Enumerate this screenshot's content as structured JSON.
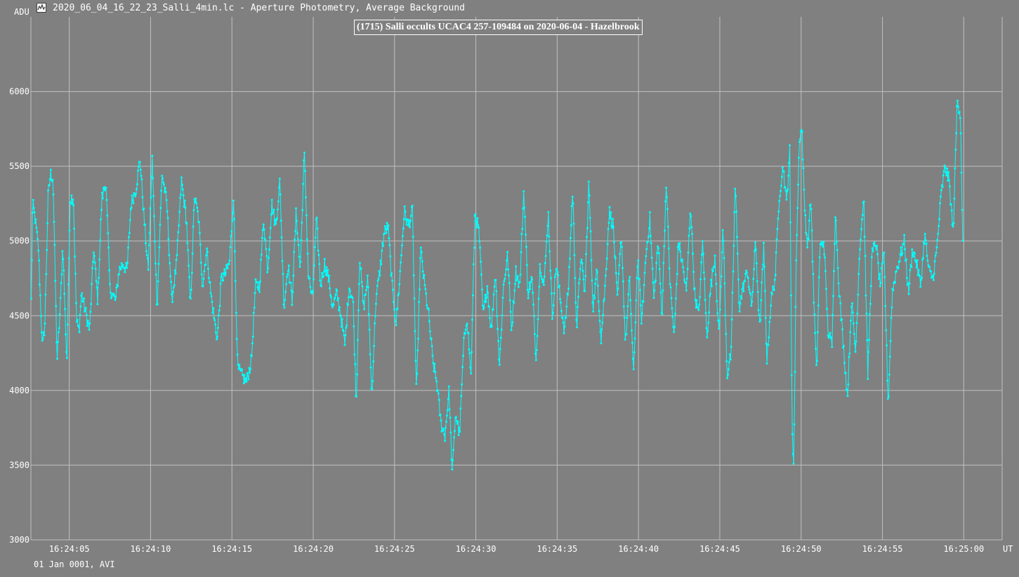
{
  "window": {
    "title": "2020_06_04_16_22_23_Salli_4min.lc - Aperture Photometry, Average Background",
    "icon": "light-curve-app-icon"
  },
  "footer": {
    "date_source": "01 Jan 0001, AVI"
  },
  "colors": {
    "background": "#808080",
    "grid": "#c0c0c0",
    "series": "#00ffff",
    "text": "#ffffff"
  },
  "chart_data": {
    "type": "line",
    "title": "(1715) Salli occults UCAC4 257-109484 on 2020-06-04 - Hazelbrook",
    "ylabel": "ADU",
    "xlabel": "UT",
    "ylim": [
      3000,
      6500
    ],
    "xlim": [
      2.64,
      62.36
    ],
    "y_ticks": [
      3000,
      3500,
      4000,
      4500,
      5000,
      5500,
      6000
    ],
    "x_ticks": [
      5,
      10,
      15,
      20,
      25,
      30,
      35,
      40,
      45,
      50,
      55,
      60
    ],
    "x_tick_labels": [
      "16:24:05",
      "16:24:10",
      "16:24:15",
      "16:24:20",
      "16:24:25",
      "16:24:30",
      "16:24:35",
      "16:24:40",
      "16:24:45",
      "16:24:50",
      "16:24:55",
      "16:25:00"
    ],
    "grid": true,
    "series": [
      {
        "color": "#00ffff",
        "x_start": 2.66,
        "x_step": 0.04,
        "anchors": [
          [
            2.66,
            4600
          ],
          [
            2.75,
            5250
          ],
          [
            2.9,
            5150
          ],
          [
            3.1,
            4950
          ],
          [
            3.35,
            4280
          ],
          [
            3.5,
            4450
          ],
          [
            3.7,
            5300
          ],
          [
            3.85,
            5450
          ],
          [
            4.0,
            5420
          ],
          [
            4.25,
            4200
          ],
          [
            4.45,
            4560
          ],
          [
            4.6,
            4980
          ],
          [
            4.85,
            4170
          ],
          [
            5.05,
            5280
          ],
          [
            5.25,
            5300
          ],
          [
            5.45,
            4460
          ],
          [
            5.6,
            4400
          ],
          [
            5.75,
            4650
          ],
          [
            5.95,
            4550
          ],
          [
            6.25,
            4400
          ],
          [
            6.5,
            4950
          ],
          [
            6.75,
            4600
          ],
          [
            7.0,
            5280
          ],
          [
            7.25,
            5400
          ],
          [
            7.5,
            4680
          ],
          [
            7.85,
            4600
          ],
          [
            8.05,
            4800
          ],
          [
            8.3,
            4850
          ],
          [
            8.55,
            4800
          ],
          [
            8.8,
            5250
          ],
          [
            9.1,
            5350
          ],
          [
            9.35,
            5550
          ],
          [
            9.6,
            5150
          ],
          [
            9.85,
            4800
          ],
          [
            10.1,
            5550
          ],
          [
            10.4,
            4550
          ],
          [
            10.7,
            5450
          ],
          [
            11.0,
            5250
          ],
          [
            11.3,
            4600
          ],
          [
            11.6,
            4850
          ],
          [
            11.9,
            5400
          ],
          [
            12.2,
            5150
          ],
          [
            12.45,
            4550
          ],
          [
            12.7,
            5300
          ],
          [
            12.95,
            5150
          ],
          [
            13.2,
            4700
          ],
          [
            13.45,
            4950
          ],
          [
            13.7,
            4650
          ],
          [
            13.95,
            4450
          ],
          [
            14.1,
            4350
          ],
          [
            14.35,
            4750
          ],
          [
            14.6,
            4780
          ],
          [
            14.85,
            4850
          ],
          [
            15.1,
            5300
          ],
          [
            15.35,
            4150
          ],
          [
            15.6,
            4100
          ],
          [
            15.9,
            4060
          ],
          [
            16.2,
            4200
          ],
          [
            16.45,
            4700
          ],
          [
            16.7,
            4700
          ],
          [
            16.95,
            5150
          ],
          [
            17.2,
            4800
          ],
          [
            17.45,
            5250
          ],
          [
            17.7,
            5100
          ],
          [
            17.95,
            5400
          ],
          [
            18.2,
            4550
          ],
          [
            18.45,
            4850
          ],
          [
            18.7,
            4600
          ],
          [
            18.95,
            5200
          ],
          [
            19.2,
            4800
          ],
          [
            19.45,
            5600
          ],
          [
            19.7,
            4780
          ],
          [
            19.95,
            4600
          ],
          [
            20.2,
            5150
          ],
          [
            20.45,
            4700
          ],
          [
            20.7,
            4850
          ],
          [
            20.95,
            4750
          ],
          [
            21.2,
            4550
          ],
          [
            21.45,
            4650
          ],
          [
            21.7,
            4500
          ],
          [
            21.95,
            4300
          ],
          [
            22.2,
            4700
          ],
          [
            22.45,
            4600
          ],
          [
            22.65,
            3900
          ],
          [
            22.85,
            4900
          ],
          [
            23.1,
            4550
          ],
          [
            23.35,
            4750
          ],
          [
            23.6,
            3950
          ],
          [
            23.85,
            4600
          ],
          [
            24.1,
            4800
          ],
          [
            24.35,
            5050
          ],
          [
            24.6,
            5100
          ],
          [
            24.85,
            4700
          ],
          [
            25.1,
            4450
          ],
          [
            25.35,
            4800
          ],
          [
            25.6,
            5200
          ],
          [
            25.85,
            5100
          ],
          [
            26.1,
            5200
          ],
          [
            26.35,
            3950
          ],
          [
            26.6,
            4950
          ],
          [
            26.85,
            4700
          ],
          [
            27.1,
            4500
          ],
          [
            27.35,
            4200
          ],
          [
            27.6,
            4050
          ],
          [
            27.85,
            3780
          ],
          [
            28.1,
            3700
          ],
          [
            28.35,
            4000
          ],
          [
            28.55,
            3430
          ],
          [
            28.75,
            3850
          ],
          [
            29.0,
            3700
          ],
          [
            29.25,
            4300
          ],
          [
            29.45,
            4500
          ],
          [
            29.7,
            4100
          ],
          [
            29.95,
            5200
          ],
          [
            30.2,
            5050
          ],
          [
            30.45,
            4500
          ],
          [
            30.7,
            4700
          ],
          [
            30.95,
            4400
          ],
          [
            31.2,
            4800
          ],
          [
            31.45,
            4150
          ],
          [
            31.7,
            4700
          ],
          [
            31.95,
            4900
          ],
          [
            32.2,
            4400
          ],
          [
            32.45,
            4800
          ],
          [
            32.7,
            4700
          ],
          [
            32.95,
            5350
          ],
          [
            33.2,
            4650
          ],
          [
            33.45,
            4750
          ],
          [
            33.7,
            4200
          ],
          [
            33.95,
            4850
          ],
          [
            34.2,
            4700
          ],
          [
            34.45,
            5200
          ],
          [
            34.7,
            4500
          ],
          [
            34.95,
            4850
          ],
          [
            35.2,
            4600
          ],
          [
            35.45,
            4400
          ],
          [
            35.7,
            4700
          ],
          [
            35.95,
            5350
          ],
          [
            36.2,
            4400
          ],
          [
            36.45,
            4900
          ],
          [
            36.7,
            4650
          ],
          [
            36.95,
            5400
          ],
          [
            37.2,
            4550
          ],
          [
            37.45,
            4800
          ],
          [
            37.7,
            4350
          ],
          [
            37.95,
            4700
          ],
          [
            38.2,
            5200
          ],
          [
            38.45,
            5100
          ],
          [
            38.7,
            4600
          ],
          [
            38.95,
            5050
          ],
          [
            39.2,
            4300
          ],
          [
            39.45,
            4750
          ],
          [
            39.7,
            4100
          ],
          [
            39.95,
            4900
          ],
          [
            40.2,
            4450
          ],
          [
            40.45,
            4900
          ],
          [
            40.7,
            5150
          ],
          [
            40.95,
            4600
          ],
          [
            41.2,
            5000
          ],
          [
            41.45,
            4500
          ],
          [
            41.7,
            5400
          ],
          [
            41.95,
            4700
          ],
          [
            42.2,
            4350
          ],
          [
            42.45,
            5000
          ],
          [
            42.7,
            4850
          ],
          [
            42.95,
            4650
          ],
          [
            43.2,
            5250
          ],
          [
            43.45,
            4650
          ],
          [
            43.7,
            4500
          ],
          [
            43.95,
            5000
          ],
          [
            44.2,
            4350
          ],
          [
            44.45,
            4700
          ],
          [
            44.7,
            4900
          ],
          [
            44.95,
            4350
          ],
          [
            45.2,
            5100
          ],
          [
            45.45,
            4100
          ],
          [
            45.7,
            4250
          ],
          [
            45.95,
            5400
          ],
          [
            46.2,
            4550
          ],
          [
            46.45,
            4700
          ],
          [
            46.7,
            4800
          ],
          [
            46.95,
            4550
          ],
          [
            47.2,
            5000
          ],
          [
            47.45,
            4400
          ],
          [
            47.7,
            4950
          ],
          [
            47.9,
            4200
          ],
          [
            48.15,
            4600
          ],
          [
            48.4,
            4750
          ],
          [
            48.65,
            5300
          ],
          [
            48.9,
            5500
          ],
          [
            49.1,
            5250
          ],
          [
            49.3,
            5600
          ],
          [
            49.45,
            3750
          ],
          [
            49.55,
            3480
          ],
          [
            49.7,
            4900
          ],
          [
            49.9,
            5700
          ],
          [
            50.05,
            5750
          ],
          [
            50.2,
            5250
          ],
          [
            50.4,
            4950
          ],
          [
            50.6,
            5300
          ],
          [
            50.75,
            4700
          ],
          [
            50.95,
            4100
          ],
          [
            51.15,
            4950
          ],
          [
            51.4,
            5000
          ],
          [
            51.65,
            4400
          ],
          [
            51.9,
            4300
          ],
          [
            52.1,
            5200
          ],
          [
            52.35,
            4650
          ],
          [
            52.6,
            4300
          ],
          [
            52.85,
            3950
          ],
          [
            53.1,
            4600
          ],
          [
            53.35,
            4250
          ],
          [
            53.6,
            4950
          ],
          [
            53.85,
            5300
          ],
          [
            54.1,
            4100
          ],
          [
            54.35,
            4900
          ],
          [
            54.6,
            5000
          ],
          [
            54.85,
            4700
          ],
          [
            55.1,
            4900
          ],
          [
            55.35,
            3900
          ],
          [
            55.6,
            4650
          ],
          [
            55.85,
            4800
          ],
          [
            56.1,
            4900
          ],
          [
            56.35,
            5000
          ],
          [
            56.6,
            4650
          ],
          [
            56.85,
            4950
          ],
          [
            57.1,
            4850
          ],
          [
            57.35,
            4700
          ],
          [
            57.6,
            5050
          ],
          [
            57.85,
            4800
          ],
          [
            58.1,
            4750
          ],
          [
            58.35,
            4950
          ],
          [
            58.6,
            5300
          ],
          [
            58.85,
            5500
          ],
          [
            59.1,
            5400
          ],
          [
            59.35,
            5050
          ],
          [
            59.6,
            5950
          ],
          [
            59.8,
            5850
          ],
          [
            59.95,
            4920
          ]
        ]
      }
    ]
  }
}
